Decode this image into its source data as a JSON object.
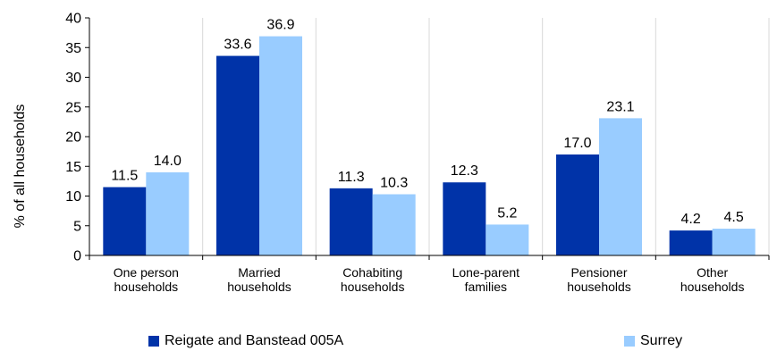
{
  "chart_data": {
    "type": "bar",
    "title": "",
    "xlabel": "",
    "ylabel": "% of all households",
    "ylim": [
      0,
      40
    ],
    "yticks": [
      0,
      5,
      10,
      15,
      20,
      25,
      30,
      35,
      40
    ],
    "grid": "vertical separators between categories",
    "legend_position": "bottom",
    "categories": [
      [
        "One person",
        "households"
      ],
      [
        "Married",
        "households"
      ],
      [
        "Cohabiting",
        "households"
      ],
      [
        "Lone-parent",
        "families"
      ],
      [
        "Pensioner",
        "households"
      ],
      [
        "Other",
        "households"
      ]
    ],
    "series": [
      {
        "name": "Reigate and Banstead 005A",
        "color": "#0033a8",
        "values": [
          11.5,
          33.6,
          11.3,
          12.3,
          17.0,
          4.2
        ],
        "labels": [
          "11.5",
          "33.6",
          "11.3",
          "12.3",
          "17.0",
          "4.2"
        ]
      },
      {
        "name": "Surrey",
        "color": "#99ccff",
        "values": [
          14.0,
          36.9,
          10.3,
          5.2,
          23.1,
          4.5
        ],
        "labels": [
          "14.0",
          "36.9",
          "10.3",
          "5.2",
          "23.1",
          "4.5"
        ]
      }
    ]
  }
}
